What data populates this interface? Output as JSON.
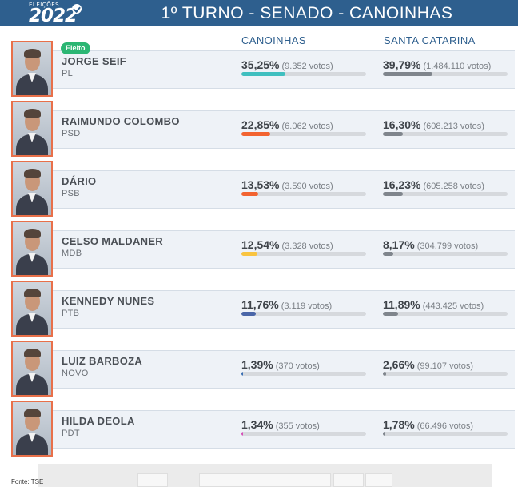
{
  "header": {
    "logo_small": "ELEIÇÕES",
    "logo_year": "2022",
    "title": "1º TURNO - SENADO - CANOINHAS"
  },
  "columns": {
    "local": "CANOINHAS",
    "state": "SANTA CATARINA"
  },
  "elected_label": "Eleito",
  "candidates": [
    {
      "name": "JORGE SEIF",
      "party": "PL",
      "elected": true,
      "local_pct": "35,25%",
      "local_votes": "(9.352 votos)",
      "local_value": 35.25,
      "state_pct": "39,79%",
      "state_votes": "(1.484.110 votos)",
      "state_value": 39.79,
      "color": "#3fbfbf"
    },
    {
      "name": "RAIMUNDO COLOMBO",
      "party": "PSD",
      "elected": false,
      "local_pct": "22,85%",
      "local_votes": "(6.062 votos)",
      "local_value": 22.85,
      "state_pct": "16,30%",
      "state_votes": "(608.213 votos)",
      "state_value": 16.3,
      "color": "#f26330"
    },
    {
      "name": "DÁRIO",
      "party": "PSB",
      "elected": false,
      "local_pct": "13,53%",
      "local_votes": "(3.590 votos)",
      "local_value": 13.53,
      "state_pct": "16,23%",
      "state_votes": "(605.258 votos)",
      "state_value": 16.23,
      "color": "#f26330"
    },
    {
      "name": "CELSO MALDANER",
      "party": "MDB",
      "elected": false,
      "local_pct": "12,54%",
      "local_votes": "(3.328 votos)",
      "local_value": 12.54,
      "state_pct": "8,17%",
      "state_votes": "(304.799 votos)",
      "state_value": 8.17,
      "color": "#f9c440"
    },
    {
      "name": "KENNEDY NUNES",
      "party": "PTB",
      "elected": false,
      "local_pct": "11,76%",
      "local_votes": "(3.119 votos)",
      "local_value": 11.76,
      "state_pct": "11,89%",
      "state_votes": "(443.425 votos)",
      "state_value": 11.89,
      "color": "#4a66a8"
    },
    {
      "name": "LUIZ BARBOZA",
      "party": "NOVO",
      "elected": false,
      "local_pct": "1,39%",
      "local_votes": "(370 votos)",
      "local_value": 1.39,
      "state_pct": "2,66%",
      "state_votes": "(99.107 votos)",
      "state_value": 2.66,
      "color": "#3a6fb3"
    },
    {
      "name": "HILDA DEOLA",
      "party": "PDT",
      "elected": false,
      "local_pct": "1,34%",
      "local_votes": "(355 votos)",
      "local_value": 1.34,
      "state_pct": "1,78%",
      "state_votes": "(66.496 votos)",
      "state_value": 1.78,
      "color": "#d64fb8"
    }
  ],
  "state_bar_color": "#7f858c",
  "source": "Fonte: TSE"
}
